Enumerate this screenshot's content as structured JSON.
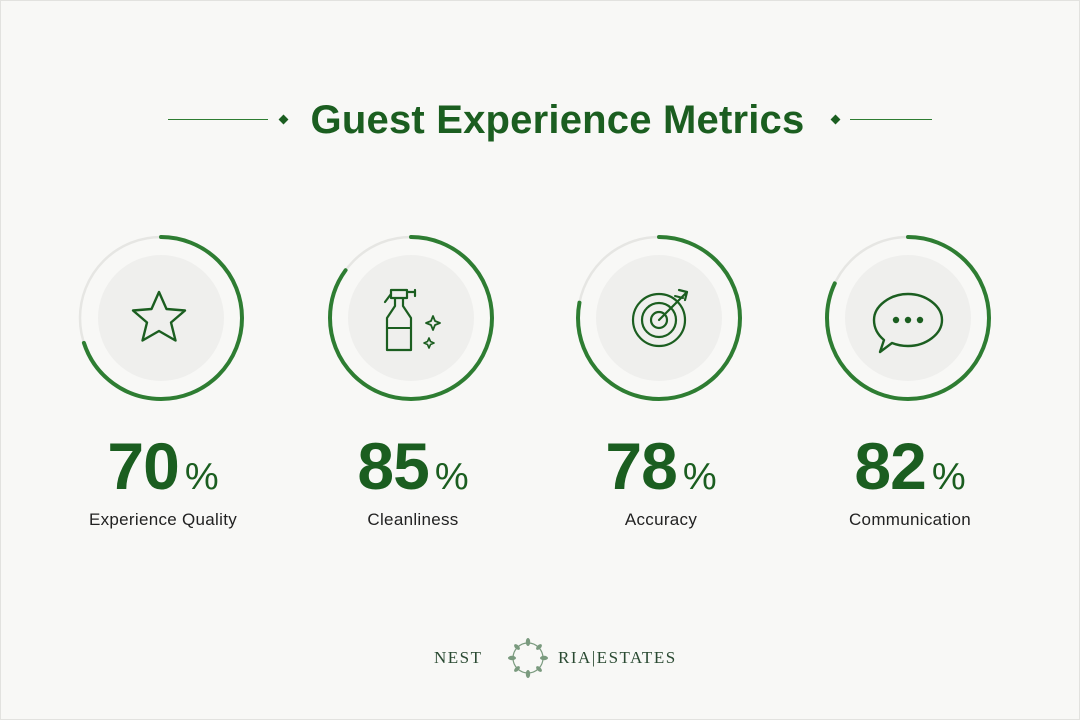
{
  "colors": {
    "accent": "#1b5e20",
    "ring": "#2e7d32",
    "track": "#e6e6e3",
    "inner": "#efefed"
  },
  "title": "Guest Experience Metrics",
  "chart_data": {
    "type": "gauge",
    "title": "Guest Experience Metrics",
    "unit": "%",
    "max": 100,
    "categories": [
      "Experience Quality",
      "Cleanliness",
      "Accuracy",
      "Communication"
    ],
    "values": [
      70,
      85,
      78,
      82
    ],
    "icons": [
      "star-icon",
      "spray-bottle-icon",
      "target-icon",
      "chat-bubble-icon"
    ]
  },
  "brand": {
    "left": "NEST",
    "right": "RIA|ESTATES"
  }
}
